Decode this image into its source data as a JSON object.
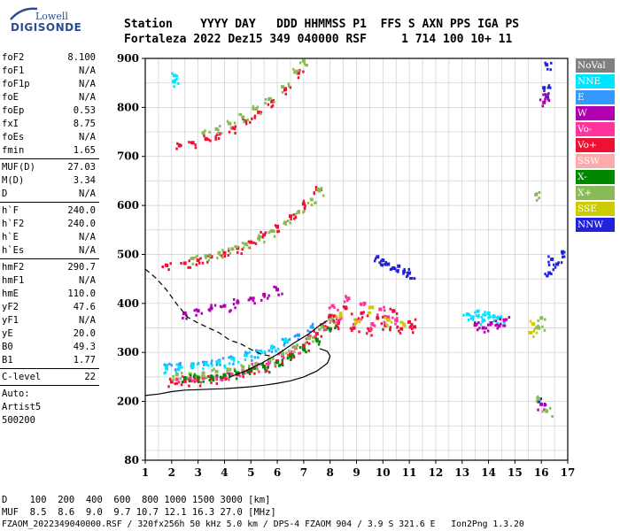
{
  "logo": {
    "top": "Lowell",
    "name": "DIGISONDE"
  },
  "header": {
    "row1": "Station    YYYY DAY   DDD HHMMSS P1  FFS S AXN PPS IGA PS",
    "row2": "Fortaleza 2022 Dez15 349 040000 RSF     1 714 100 10+ 11"
  },
  "params": [
    {
      "label": "foF2",
      "value": "8.100"
    },
    {
      "label": "foF1",
      "value": "N/A"
    },
    {
      "label": "foF1p",
      "value": "N/A"
    },
    {
      "label": "foE",
      "value": "N/A"
    },
    {
      "label": "foEp",
      "value": "0.53"
    },
    {
      "label": "fxI",
      "value": "8.75"
    },
    {
      "label": "foEs",
      "value": "N/A"
    },
    {
      "label": "fmin",
      "value": "1.65"
    },
    {
      "sep": true
    },
    {
      "label": "MUF(D)",
      "value": "27.03"
    },
    {
      "label": "M(D)",
      "value": "3.34"
    },
    {
      "label": "D",
      "value": "N/A"
    },
    {
      "sep": true
    },
    {
      "label": "h`F",
      "value": "240.0"
    },
    {
      "label": "h`F2",
      "value": "240.0"
    },
    {
      "label": "h`E",
      "value": "N/A"
    },
    {
      "label": "h`Es",
      "value": "N/A"
    },
    {
      "sep": true
    },
    {
      "label": "hmF2",
      "value": "290.7"
    },
    {
      "label": "hmF1",
      "value": "N/A"
    },
    {
      "label": "hmE",
      "value": "110.0"
    },
    {
      "label": "yF2",
      "value": "47.6"
    },
    {
      "label": "yF1",
      "value": "N/A"
    },
    {
      "label": "yE",
      "value": "20.0"
    },
    {
      "label": "B0",
      "value": "49.3"
    },
    {
      "label": "B1",
      "value": "1.77"
    },
    {
      "sep": true
    },
    {
      "label": "C-level",
      "value": "22"
    },
    {
      "sep": true
    },
    {
      "text": "Auto:"
    },
    {
      "text": "Artist5"
    },
    {
      "text": "500200"
    }
  ],
  "legend": [
    {
      "label": "NoVal",
      "color": "#808080"
    },
    {
      "label": "NNE",
      "color": "#00e5ff"
    },
    {
      "label": "E",
      "color": "#3399ff"
    },
    {
      "label": "W",
      "color": "#b000b0"
    },
    {
      "label": "Vo-",
      "color": "#ff3399"
    },
    {
      "label": "Vo+",
      "color": "#ee1133"
    },
    {
      "label": "SSW",
      "color": "#ffaaaa"
    },
    {
      "label": "X-",
      "color": "#008800"
    },
    {
      "label": "X+",
      "color": "#88bb55"
    },
    {
      "label": "SSE",
      "color": "#cccc00"
    },
    {
      "label": "NNW",
      "color": "#2222dd"
    }
  ],
  "footer": {
    "d_row": "D    100  200  400  600  800 1000 1500 3000 [km]",
    "muf_row": "MUF  8.5  8.6  9.0  9.7 10.7 12.1 16.3 27.0 [MHz]",
    "file_row": "FZAOM_2022349040000.RSF / 320fx256h 50 kHz 5.0 km / DPS-4 FZAOM 904 / 3.9 S 321.6 E   Ion2Png 1.3.20"
  },
  "chart_data": {
    "type": "scatter",
    "title": "",
    "xlabel": "",
    "ylabel": "",
    "xlim": [
      1,
      17
    ],
    "ylim": [
      80,
      900
    ],
    "x_ticks": [
      1,
      2,
      3,
      4,
      5,
      6,
      7,
      8,
      9,
      10,
      11,
      12,
      13,
      14,
      15,
      16,
      17
    ],
    "y_ticks": [
      80,
      200,
      300,
      400,
      500,
      600,
      700,
      800,
      900
    ],
    "grid": true,
    "legend_position": "right",
    "traces": [
      {
        "name": "Vo+",
        "color": "#ee1133",
        "x": [
          2.0,
          2.5,
          3.0,
          3.5,
          4.0,
          4.5,
          5.0,
          5.5,
          6.0,
          6.5,
          7.0,
          7.5,
          7.8
        ],
        "y": [
          240,
          241,
          243,
          246,
          250,
          255,
          262,
          271,
          282,
          296,
          314,
          338,
          352
        ]
      },
      {
        "name": "Vo-",
        "color": "#ff3399",
        "x": [
          2.2,
          2.7,
          3.2,
          3.7,
          4.2,
          4.7,
          5.2,
          5.7,
          6.2,
          6.7,
          7.2,
          7.7,
          8.0
        ],
        "y": [
          245,
          246,
          248,
          251,
          256,
          262,
          270,
          280,
          293,
          309,
          330,
          356,
          372
        ]
      },
      {
        "name": "E",
        "color": "#3399ff",
        "x": [
          1.8,
          2.3,
          2.8,
          3.3,
          3.8,
          4.3,
          4.8,
          5.3,
          5.8,
          6.3,
          6.8,
          7.3
        ],
        "y": [
          273,
          274,
          276,
          279,
          283,
          288,
          294,
          301,
          310,
          321,
          335,
          352
        ]
      },
      {
        "name": "NNE",
        "color": "#00e5ff",
        "x": [
          1.8,
          2.3,
          2.8,
          3.3,
          3.8,
          4.3,
          4.8,
          5.3,
          5.8,
          6.3
        ],
        "y": [
          268,
          270,
          272,
          276,
          281,
          287,
          294,
          302,
          312,
          324
        ]
      },
      {
        "name": "W",
        "color": "#b000b0",
        "x": [
          2.5,
          3.0,
          3.5,
          4.0,
          4.5,
          5.0,
          5.5,
          6.0
        ],
        "y": [
          380,
          385,
          390,
          395,
          402,
          410,
          418,
          428
        ]
      },
      {
        "name": "X+",
        "color": "#88bb55",
        "x": [
          2.2,
          2.7,
          3.2,
          3.7,
          4.2,
          4.7,
          5.2,
          5.7,
          6.2,
          6.7,
          7.2,
          7.7,
          8.1
        ],
        "y": [
          255,
          256,
          258,
          261,
          265,
          270,
          277,
          286,
          297,
          311,
          329,
          352,
          368
        ]
      },
      {
        "name": "X-",
        "color": "#008800",
        "x": [
          2.5,
          3.0,
          3.5,
          4.0,
          4.5,
          5.0,
          5.5,
          6.0,
          6.5,
          7.0,
          7.5,
          8.0
        ],
        "y": [
          248,
          249,
          251,
          254,
          258,
          264,
          271,
          280,
          292,
          307,
          326,
          348
        ]
      },
      {
        "name": "Vo+ 2nd",
        "color": "#ee1133",
        "x": [
          1.8,
          2.5,
          3.0,
          3.5,
          4.0,
          4.5,
          5.0,
          5.5,
          6.0,
          6.5,
          7.0,
          7.5
        ],
        "y": [
          478,
          482,
          488,
          495,
          503,
          513,
          525,
          540,
          557,
          578,
          603,
          633
        ]
      },
      {
        "name": "X+ 2nd",
        "color": "#88bb55",
        "x": [
          2.8,
          3.3,
          3.8,
          4.3,
          4.8,
          5.3,
          5.8,
          6.3,
          6.8,
          7.3,
          7.6
        ],
        "y": [
          492,
          497,
          503,
          511,
          521,
          533,
          548,
          565,
          586,
          612,
          630
        ]
      },
      {
        "name": "Vo+ 3rd",
        "color": "#ee1133",
        "x": [
          2.3,
          2.8,
          3.3,
          3.8,
          4.3,
          4.8,
          5.3,
          5.8,
          6.3,
          6.8
        ],
        "y": [
          722,
          728,
          736,
          746,
          758,
          772,
          790,
          812,
          838,
          870
        ]
      },
      {
        "name": "X+ 3rd",
        "color": "#88bb55",
        "x": [
          3.2,
          3.7,
          4.2,
          4.7,
          5.2,
          5.7,
          6.2,
          6.7,
          7.0
        ],
        "y": [
          748,
          756,
          767,
          780,
          797,
          817,
          842,
          872,
          895
        ]
      },
      {
        "name": "Vo+ spread",
        "color": "#ee1133",
        "x": [
          8.0,
          8.3,
          8.6,
          8.9,
          9.2,
          9.5,
          9.8,
          10.1,
          10.4,
          10.7,
          11.0,
          11.2
        ],
        "y": [
          375,
          360,
          390,
          350,
          380,
          345,
          370,
          355,
          385,
          348,
          362,
          352
        ]
      },
      {
        "name": "Vo- spread",
        "color": "#ff3399",
        "x": [
          8.1,
          8.4,
          8.7,
          9.0,
          9.3,
          9.6,
          9.9,
          10.2,
          10.5
        ],
        "y": [
          395,
          370,
          410,
          365,
          400,
          358,
          388,
          372,
          366
        ]
      },
      {
        "name": "SSE",
        "color": "#cccc00",
        "x": [
          8.4,
          9.0,
          9.6,
          10.2,
          10.8,
          15.6,
          15.7
        ],
        "y": [
          378,
          362,
          392,
          366,
          357,
          340,
          358
        ]
      },
      {
        "name": "NNW",
        "color": "#2222dd",
        "x": [
          9.8,
          10.0,
          10.2,
          10.4,
          10.6,
          10.8,
          11.0,
          16.1,
          16.2,
          16.3,
          16.4,
          16.6,
          16.8,
          16.2,
          15.9
        ],
        "y": [
          495,
          488,
          480,
          472,
          476,
          465,
          462,
          840,
          822,
          462,
          490,
          480,
          505,
          887,
          200
        ]
      },
      {
        "name": "NNE far",
        "color": "#00e5ff",
        "x": [
          13.2,
          13.4,
          13.6,
          13.8,
          14.0,
          14.2,
          14.4,
          2.1,
          2.1
        ],
        "y": [
          378,
          372,
          384,
          366,
          380,
          374,
          370,
          852,
          865
        ]
      },
      {
        "name": "W far",
        "color": "#b000b0",
        "x": [
          13.5,
          13.8,
          14.1,
          14.4,
          14.6,
          16.1,
          16.2,
          16.0
        ],
        "y": [
          356,
          350,
          360,
          354,
          366,
          810,
          825,
          194
        ]
      },
      {
        "name": "X+ far",
        "color": "#88bb55",
        "x": [
          15.8,
          15.9,
          16.0,
          15.9,
          16.2
        ],
        "y": [
          622,
          350,
          370,
          205,
          180
        ]
      }
    ],
    "model_curves": [
      {
        "name": "dashed",
        "dash": true,
        "x": [
          1.0,
          1.4,
          1.8,
          2.2,
          2.6,
          3.0,
          3.4,
          3.8,
          4.2,
          4.6,
          5.0,
          5.4,
          5.8
        ],
        "y": [
          470,
          452,
          428,
          398,
          372,
          360,
          350,
          340,
          325,
          318,
          306,
          296,
          292
        ]
      },
      {
        "name": "solid",
        "dash": false,
        "x": [
          1.0,
          1.5,
          2.0,
          2.5,
          3.0,
          3.5,
          4.0,
          4.5,
          5.0,
          5.5,
          6.0,
          6.5,
          7.0,
          7.5,
          7.9,
          8.0,
          7.9,
          7.6
        ],
        "y": [
          212,
          215,
          220,
          223,
          224,
          225,
          226,
          228,
          230,
          233,
          237,
          242,
          250,
          262,
          278,
          292,
          302,
          308
        ]
      },
      {
        "name": "profile",
        "dash": false,
        "x": [
          4.2,
          4.8,
          5.4,
          6.0,
          6.6,
          7.2,
          7.6,
          7.9
        ],
        "y": [
          250,
          262,
          278,
          296,
          318,
          338,
          355,
          365
        ]
      }
    ]
  }
}
